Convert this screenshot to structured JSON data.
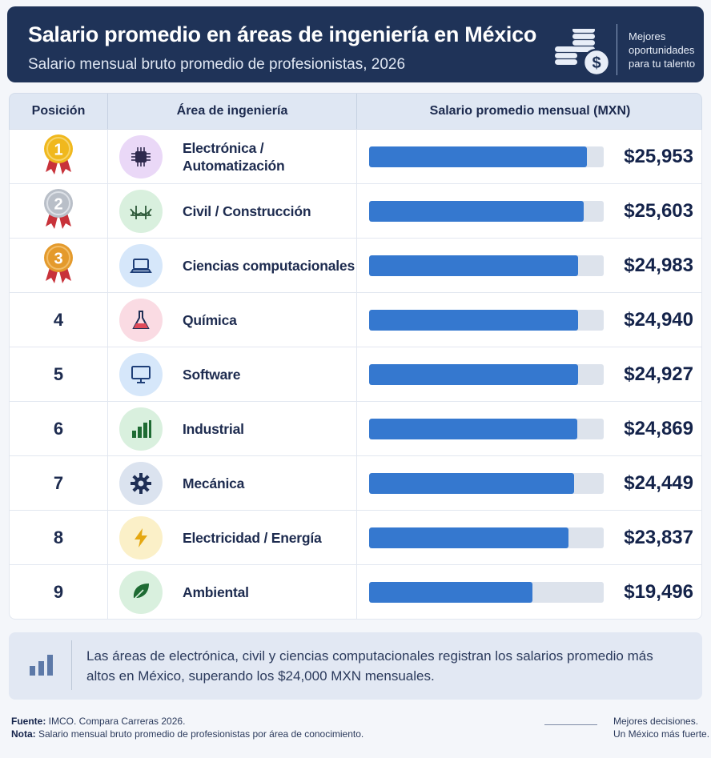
{
  "header": {
    "title": "Salario promedio en áreas de ingeniería en México",
    "subtitle": "Salario mensual bruto promedio de profesionistas, 2026",
    "tagline": "Mejores oportunidades para tu talento"
  },
  "table": {
    "col_position": "Posición",
    "col_area": "Área de ingeniería",
    "col_salary": "Salario promedio mensual (MXN)"
  },
  "chart_data": {
    "type": "bar",
    "title": "Salario promedio en áreas de ingeniería en México",
    "subtitle": "Salario mensual bruto promedio de profesionistas, 2026",
    "value_label": "Salario promedio mensual (MXN)",
    "xlim": [
      0,
      28000
    ],
    "rows": [
      {
        "rank": "1",
        "medal": "gold",
        "area": "Electrónica /\nAutomatización",
        "icon": "chip-icon",
        "icon_bg": "#ead8f7",
        "icon_fg": "#2f2a4e",
        "value": 25953,
        "label": "$25,953"
      },
      {
        "rank": "2",
        "medal": "silver",
        "area": "Civil / Construcción",
        "icon": "bridge-icon",
        "icon_bg": "#d9f0de",
        "icon_fg": "#2e5a3a",
        "value": 25603,
        "label": "$25,603"
      },
      {
        "rank": "3",
        "medal": "bronze",
        "area": "Ciencias computacionales",
        "icon": "laptop-icon",
        "icon_bg": "#d6e7fa",
        "icon_fg": "#1f3f78",
        "value": 24983,
        "label": "$24,983"
      },
      {
        "rank": "4",
        "medal": "",
        "area": "Química",
        "icon": "flask-icon",
        "icon_bg": "#fadbe3",
        "icon_fg": "#1f2f55",
        "value": 24940,
        "label": "$24,940"
      },
      {
        "rank": "5",
        "medal": "",
        "area": "Software",
        "icon": "monitor-icon",
        "icon_bg": "#d6e7fa",
        "icon_fg": "#1f3f78",
        "value": 24927,
        "label": "$24,927"
      },
      {
        "rank": "6",
        "medal": "",
        "area": "Industrial",
        "icon": "bar-chart-icon",
        "icon_bg": "#d9f0de",
        "icon_fg": "#1e6b33",
        "value": 24869,
        "label": "$24,869"
      },
      {
        "rank": "7",
        "medal": "",
        "area": "Mecánica",
        "icon": "gear-icon",
        "icon_bg": "#dbe3ef",
        "icon_fg": "#1f2f55",
        "value": 24449,
        "label": "$24,449"
      },
      {
        "rank": "8",
        "medal": "",
        "area": "Electricidad / Energía",
        "icon": "lightning-icon",
        "icon_bg": "#fbf0c8",
        "icon_fg": "#e5a812",
        "value": 23837,
        "label": "$23,837"
      },
      {
        "rank": "9",
        "medal": "",
        "area": "Ambiental",
        "icon": "leaf-icon",
        "icon_bg": "#d9f0de",
        "icon_fg": "#1e6b33",
        "value": 19496,
        "label": "$19,496"
      }
    ]
  },
  "note": {
    "text": "Las áreas de electrónica, civil y ciencias computacionales registran los salarios promedio más altos en México, superando los $24,000 MXN mensuales."
  },
  "footer": {
    "source_label": "Fuente:",
    "source_text": " IMCO. Compara Carreras 2026.",
    "note_label": "Nota:",
    "note_text": " Salario mensual bruto promedio de profesionistas por área de conocimiento.",
    "right_line1": "Mejores decisiones.",
    "right_line2": "Un México más fuerte."
  },
  "colors": {
    "header_bg": "#1f3358",
    "bar_fill": "#3578cf",
    "bar_track": "#dde3ec",
    "gold": "#f0b81d",
    "silver": "#b9bfc8",
    "bronze": "#e49a2c",
    "ribbon": "#c8323a"
  }
}
